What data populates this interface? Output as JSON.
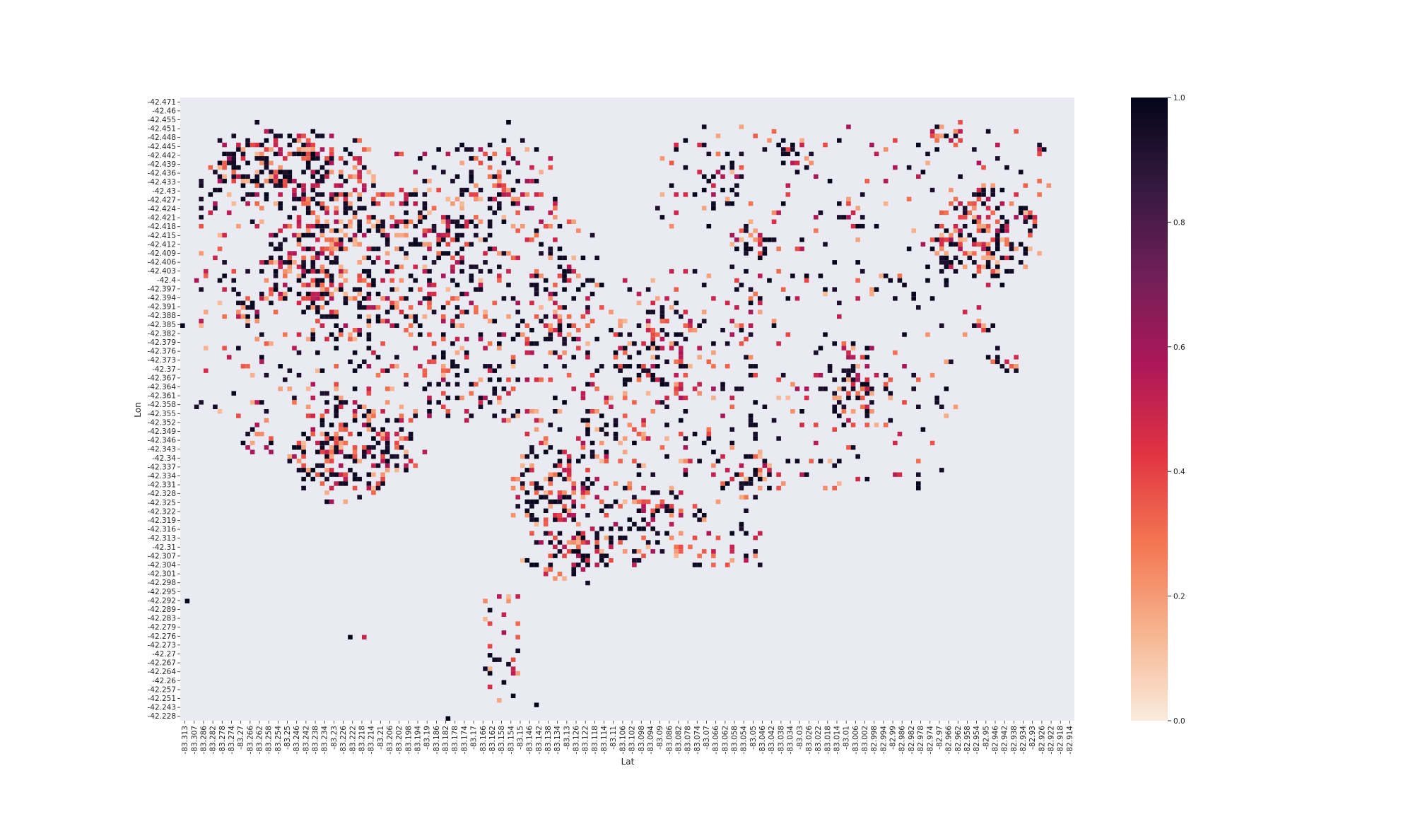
{
  "chart_data": {
    "type": "heatmap",
    "title": "",
    "xlabel": "Lat",
    "ylabel": "Lon",
    "x_tick_labels": [
      "-83.313",
      "-83.307",
      "-83.286",
      "-83.282",
      "-83.278",
      "-83.274",
      "-83.27",
      "-83.266",
      "-83.262",
      "-83.258",
      "-83.254",
      "-83.25",
      "-83.246",
      "-83.242",
      "-83.238",
      "-83.234",
      "-83.23",
      "-83.226",
      "-83.222",
      "-83.218",
      "-83.214",
      "-83.21",
      "-83.206",
      "-83.202",
      "-83.198",
      "-83.194",
      "-83.19",
      "-83.186",
      "-83.182",
      "-83.178",
      "-83.174",
      "-83.17",
      "-83.166",
      "-83.162",
      "-83.158",
      "-83.154",
      "-83.15",
      "-83.146",
      "-83.142",
      "-83.138",
      "-83.134",
      "-83.13",
      "-83.126",
      "-83.122",
      "-83.118",
      "-83.114",
      "-83.11",
      "-83.106",
      "-83.102",
      "-83.098",
      "-83.094",
      "-83.09",
      "-83.086",
      "-83.082",
      "-83.078",
      "-83.074",
      "-83.07",
      "-83.066",
      "-83.062",
      "-83.058",
      "-83.054",
      "-83.05",
      "-83.046",
      "-83.042",
      "-83.038",
      "-83.034",
      "-83.03",
      "-83.026",
      "-83.022",
      "-83.018",
      "-83.014",
      "-83.01",
      "-83.006",
      "-83.002",
      "-82.998",
      "-82.994",
      "-82.99",
      "-82.986",
      "-82.982",
      "-82.978",
      "-82.974",
      "-82.97",
      "-82.966",
      "-82.962",
      "-82.958",
      "-82.954",
      "-82.95",
      "-82.946",
      "-82.942",
      "-82.938",
      "-82.934",
      "-82.93",
      "-82.926",
      "-82.922",
      "-82.918",
      "-82.914"
    ],
    "y_tick_labels": [
      "-42.471",
      "-42.46",
      "-42.455",
      "-42.451",
      "-42.448",
      "-42.445",
      "-42.442",
      "-42.439",
      "-42.436",
      "-42.433",
      "-42.43",
      "-42.427",
      "-42.424",
      "-42.421",
      "-42.418",
      "-42.415",
      "-42.412",
      "-42.409",
      "-42.406",
      "-42.403",
      "-42.4",
      "-42.397",
      "-42.394",
      "-42.391",
      "-42.388",
      "-42.385",
      "-42.382",
      "-42.379",
      "-42.376",
      "-42.373",
      "-42.37",
      "-42.367",
      "-42.364",
      "-42.361",
      "-42.358",
      "-42.355",
      "-42.352",
      "-42.349",
      "-42.346",
      "-42.343",
      "-42.34",
      "-42.337",
      "-42.334",
      "-42.331",
      "-42.328",
      "-42.325",
      "-42.322",
      "-42.319",
      "-42.316",
      "-42.313",
      "-42.31",
      "-42.307",
      "-42.304",
      "-42.301",
      "-42.298",
      "-42.295",
      "-42.292",
      "-42.289",
      "-42.283",
      "-42.279",
      "-42.276",
      "-42.273",
      "-42.27",
      "-42.267",
      "-42.264",
      "-42.26",
      "-42.257",
      "-42.251",
      "-42.243",
      "-42.228"
    ],
    "grid_cols": 192,
    "grid_rows": 138,
    "value_range": [
      0.0,
      1.0
    ],
    "colorbar_ticks": [
      "0.0",
      "0.2",
      "0.4",
      "0.6",
      "0.8",
      "1.0"
    ],
    "colormap": "rocket_r",
    "colormap_stops": [
      "#faebdd",
      "#f6b48f",
      "#f37651",
      "#e13342",
      "#ad1759",
      "#701f57",
      "#35193e",
      "#03051a"
    ],
    "background_color": "#eaeaf2",
    "clusters": [
      {
        "cx": 0.07,
        "cy": 0.12,
        "r": 0.035,
        "density": 0.45
      },
      {
        "cx": 0.1,
        "cy": 0.1,
        "r": 0.05,
        "density": 0.35
      },
      {
        "cx": 0.16,
        "cy": 0.13,
        "r": 0.06,
        "density": 0.4
      },
      {
        "cx": 0.14,
        "cy": 0.27,
        "r": 0.05,
        "density": 0.45
      },
      {
        "cx": 0.18,
        "cy": 0.22,
        "r": 0.05,
        "density": 0.35
      },
      {
        "cx": 0.2,
        "cy": 0.33,
        "r": 0.06,
        "density": 0.25
      },
      {
        "cx": 0.08,
        "cy": 0.34,
        "r": 0.02,
        "density": 0.5
      },
      {
        "cx": 0.09,
        "cy": 0.55,
        "r": 0.02,
        "density": 0.6
      },
      {
        "cx": 0.18,
        "cy": 0.57,
        "r": 0.06,
        "density": 0.6
      },
      {
        "cx": 0.24,
        "cy": 0.56,
        "r": 0.035,
        "density": 0.45
      },
      {
        "cx": 0.25,
        "cy": 0.2,
        "r": 0.05,
        "density": 0.25
      },
      {
        "cx": 0.3,
        "cy": 0.23,
        "r": 0.07,
        "density": 0.22
      },
      {
        "cx": 0.35,
        "cy": 0.14,
        "r": 0.05,
        "density": 0.3
      },
      {
        "cx": 0.28,
        "cy": 0.38,
        "r": 0.06,
        "density": 0.18
      },
      {
        "cx": 0.33,
        "cy": 0.47,
        "r": 0.05,
        "density": 0.18
      },
      {
        "cx": 0.42,
        "cy": 0.24,
        "r": 0.05,
        "density": 0.18
      },
      {
        "cx": 0.43,
        "cy": 0.36,
        "r": 0.05,
        "density": 0.2
      },
      {
        "cx": 0.42,
        "cy": 0.62,
        "r": 0.05,
        "density": 0.4
      },
      {
        "cx": 0.46,
        "cy": 0.52,
        "r": 0.06,
        "density": 0.2
      },
      {
        "cx": 0.44,
        "cy": 0.73,
        "r": 0.04,
        "density": 0.4
      },
      {
        "cx": 0.5,
        "cy": 0.7,
        "r": 0.04,
        "density": 0.4
      },
      {
        "cx": 0.54,
        "cy": 0.66,
        "r": 0.03,
        "density": 0.35
      },
      {
        "cx": 0.53,
        "cy": 0.4,
        "r": 0.05,
        "density": 0.3
      },
      {
        "cx": 0.56,
        "cy": 0.42,
        "r": 0.04,
        "density": 0.25
      },
      {
        "cx": 0.59,
        "cy": 0.12,
        "r": 0.05,
        "density": 0.18
      },
      {
        "cx": 0.64,
        "cy": 0.23,
        "r": 0.025,
        "density": 0.5
      },
      {
        "cx": 0.64,
        "cy": 0.61,
        "r": 0.025,
        "density": 0.4
      },
      {
        "cx": 0.69,
        "cy": 0.1,
        "r": 0.02,
        "density": 0.4
      },
      {
        "cx": 0.75,
        "cy": 0.19,
        "r": 0.02,
        "density": 0.4
      },
      {
        "cx": 0.76,
        "cy": 0.48,
        "r": 0.04,
        "density": 0.4
      },
      {
        "cx": 0.73,
        "cy": 0.43,
        "r": 0.05,
        "density": 0.15
      },
      {
        "cx": 0.9,
        "cy": 0.22,
        "r": 0.06,
        "density": 0.45
      },
      {
        "cx": 0.86,
        "cy": 0.24,
        "r": 0.03,
        "density": 0.4
      },
      {
        "cx": 0.92,
        "cy": 0.42,
        "r": 0.02,
        "density": 0.6
      },
      {
        "cx": 0.89,
        "cy": 0.36,
        "r": 0.02,
        "density": 0.4
      },
      {
        "cx": 0.86,
        "cy": 0.06,
        "r": 0.02,
        "density": 0.3
      }
    ],
    "background_scatter": [
      {
        "x0": 0.02,
        "y0": 0.07,
        "x1": 0.42,
        "y1": 0.52,
        "density": 0.1
      },
      {
        "x0": 0.37,
        "y0": 0.28,
        "x1": 0.65,
        "y1": 0.75,
        "density": 0.1
      },
      {
        "x0": 0.53,
        "y0": 0.05,
        "x1": 0.97,
        "y1": 0.3,
        "density": 0.05
      },
      {
        "x0": 0.64,
        "y0": 0.28,
        "x1": 0.86,
        "y1": 0.63,
        "density": 0.05
      },
      {
        "x0": 0.34,
        "y0": 0.8,
        "x1": 0.38,
        "y1": 0.97,
        "density": 0.2
      }
    ],
    "isolated_cells": [
      {
        "x": 0.0,
        "y": 0.363,
        "v": 1.0
      },
      {
        "x": 0.008,
        "y": 0.805,
        "v": 1.0
      },
      {
        "x": 0.188,
        "y": 0.863,
        "v": 1.0
      },
      {
        "x": 0.204,
        "y": 0.866,
        "v": 0.5
      },
      {
        "x": 0.3,
        "y": 0.996,
        "v": 1.0
      },
      {
        "x": 0.397,
        "y": 0.977,
        "v": 1.0
      },
      {
        "x": 0.367,
        "y": 0.04,
        "v": 1.0
      },
      {
        "x": 0.866,
        "y": 0.498,
        "v": 0.2
      }
    ]
  }
}
